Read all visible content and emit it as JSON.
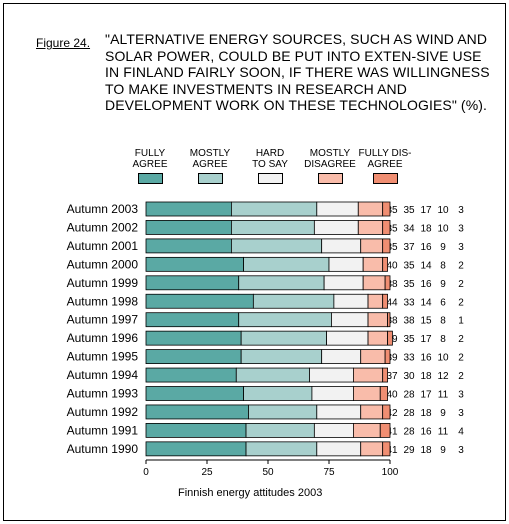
{
  "figure": {
    "label": "Figure 24.",
    "title": "\"ALTERNATIVE ENERGY SOURCES, SUCH AS WIND AND SOLAR POWER, COULD BE PUT INTO EXTEN-SIVE USE IN FINLAND FAIRLY SOON, IF THERE WAS WILLINGNESS TO MAKE INVESTMENTS IN RESEARCH AND DEVELOPMENT WORK ON THESE TECHNOLOGIES\" (%).",
    "footer": "Finnish energy attitudes 2003"
  },
  "chart_data": {
    "type": "bar",
    "orientation": "horizontal",
    "stacked": true,
    "title": "\"ALTERNATIVE ENERGY SOURCES, SUCH AS WIND AND SOLAR POWER, COULD BE PUT INTO EXTEN-SIVE USE IN FINLAND FAIRLY SOON, IF THERE WAS WILLINGNESS TO MAKE INVESTMENTS IN RESEARCH AND DEVELOPMENT WORK ON THESE TECHNOLOGIES\" (%).",
    "xlabel": "",
    "ylabel": "",
    "xlim": [
      0,
      100
    ],
    "xticks": [
      0,
      25,
      50,
      75,
      100
    ],
    "grid": false,
    "legend_position": "top",
    "categories": [
      "Autumn 2003",
      "Autumn 2002",
      "Autumn 2001",
      "Autumn 2000",
      "Autumn 1999",
      "Autumn 1998",
      "Autumn 1997",
      "Autumn 1996",
      "Autumn 1995",
      "Autumn 1994",
      "Autumn 1993",
      "Autumn 1992",
      "Autumn 1991",
      "Autumn 1990"
    ],
    "series": [
      {
        "name": "FULLY\nAGREE",
        "color": "#5aa9a4",
        "values": [
          35,
          35,
          35,
          40,
          38,
          44,
          38,
          39,
          39,
          37,
          40,
          42,
          41,
          41
        ]
      },
      {
        "name": "MOSTLY\nAGREE",
        "color": "#a8d0cd",
        "values": [
          35,
          34,
          37,
          35,
          35,
          33,
          38,
          35,
          33,
          30,
          28,
          28,
          28,
          29
        ]
      },
      {
        "name": "HARD\nTO SAY",
        "color": "#f2f2f2",
        "values": [
          17,
          18,
          16,
          14,
          16,
          14,
          15,
          17,
          16,
          18,
          17,
          18,
          16,
          18
        ]
      },
      {
        "name": "MOSTLY\nDISAGREE",
        "color": "#f9bcaa",
        "values": [
          10,
          10,
          9,
          8,
          9,
          6,
          8,
          8,
          10,
          12,
          11,
          9,
          11,
          9
        ]
      },
      {
        "name": "FULLY DIS-\nAGREE",
        "color": "#f08e72",
        "values": [
          3,
          3,
          3,
          2,
          2,
          2,
          1,
          2,
          2,
          2,
          3,
          3,
          4,
          3
        ]
      }
    ]
  }
}
